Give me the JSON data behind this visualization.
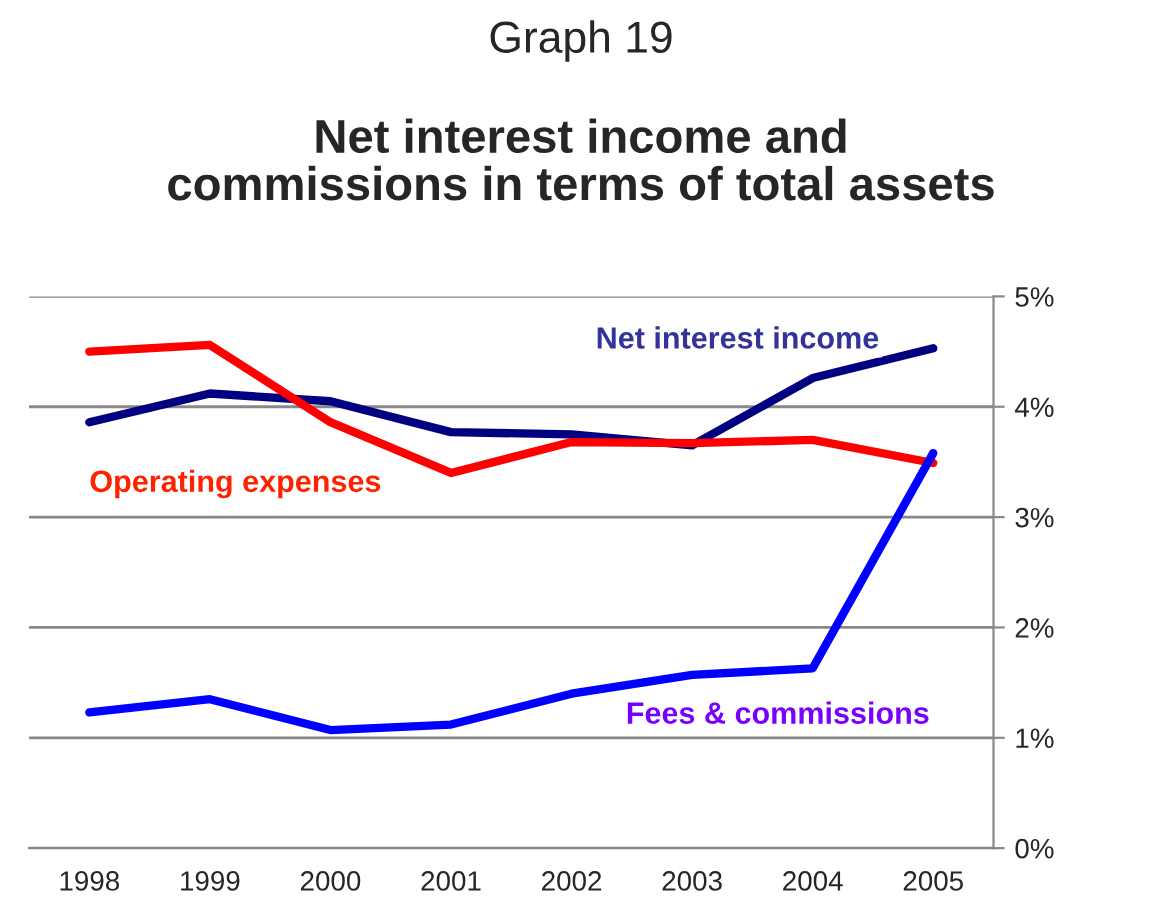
{
  "chart_data": {
    "type": "line",
    "title": "Graph 19",
    "subtitle": "Net interest income and\ncommissions in terms of total assets",
    "categories": [
      "1998",
      "1999",
      "2000",
      "2001",
      "2002",
      "2003",
      "2004",
      "2005"
    ],
    "series": [
      {
        "name": "Net interest income",
        "color": "#000080",
        "values": [
          3.86,
          4.12,
          4.05,
          3.77,
          3.75,
          3.65,
          4.26,
          4.53
        ]
      },
      {
        "name": "Operating expenses",
        "color": "#ff0000",
        "values": [
          4.5,
          4.56,
          3.86,
          3.4,
          3.68,
          3.67,
          3.7,
          3.49
        ]
      },
      {
        "name": "Fees & commissions",
        "color": "#0000ff",
        "values": [
          1.23,
          1.35,
          1.07,
          1.12,
          1.4,
          1.57,
          1.63,
          3.58
        ]
      }
    ],
    "ylim": [
      0,
      5
    ],
    "yticks": [
      {
        "value": 0,
        "label": "0%"
      },
      {
        "value": 1,
        "label": "1%"
      },
      {
        "value": 2,
        "label": "2%"
      },
      {
        "value": 3,
        "label": "3%"
      },
      {
        "value": 4,
        "label": "4%"
      },
      {
        "value": 5,
        "label": "5%"
      }
    ],
    "grid": "y",
    "legend": false,
    "marker": "none",
    "line_style": "solid"
  }
}
